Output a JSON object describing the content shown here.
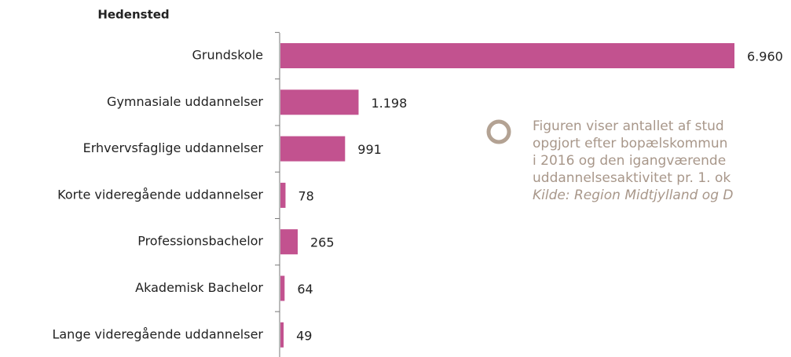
{
  "chart_data": {
    "type": "barh",
    "title": "Hedensted",
    "categories": [
      "Grundskole",
      "Gymnasiale uddannelser",
      "Erhvervsfaglige uddannelser",
      "Korte videregående uddannelser",
      "Professionsbachelor",
      "Akademisk Bachelor",
      "Lange videregående uddannelser"
    ],
    "values": [
      6960,
      1198,
      991,
      78,
      265,
      64,
      49
    ],
    "value_labels": [
      "6.960",
      "1.198",
      "991",
      "78",
      "265",
      "64",
      "49"
    ],
    "color": "#c2528f",
    "annotation": [
      "Figuren viser antallet af stud",
      "opgjort efter bopælskommun",
      "i 2016 og den igangværende",
      "uddannelsesaktivitet pr. 1. ok",
      "Kilde: Region Midtjylland og D"
    ]
  }
}
